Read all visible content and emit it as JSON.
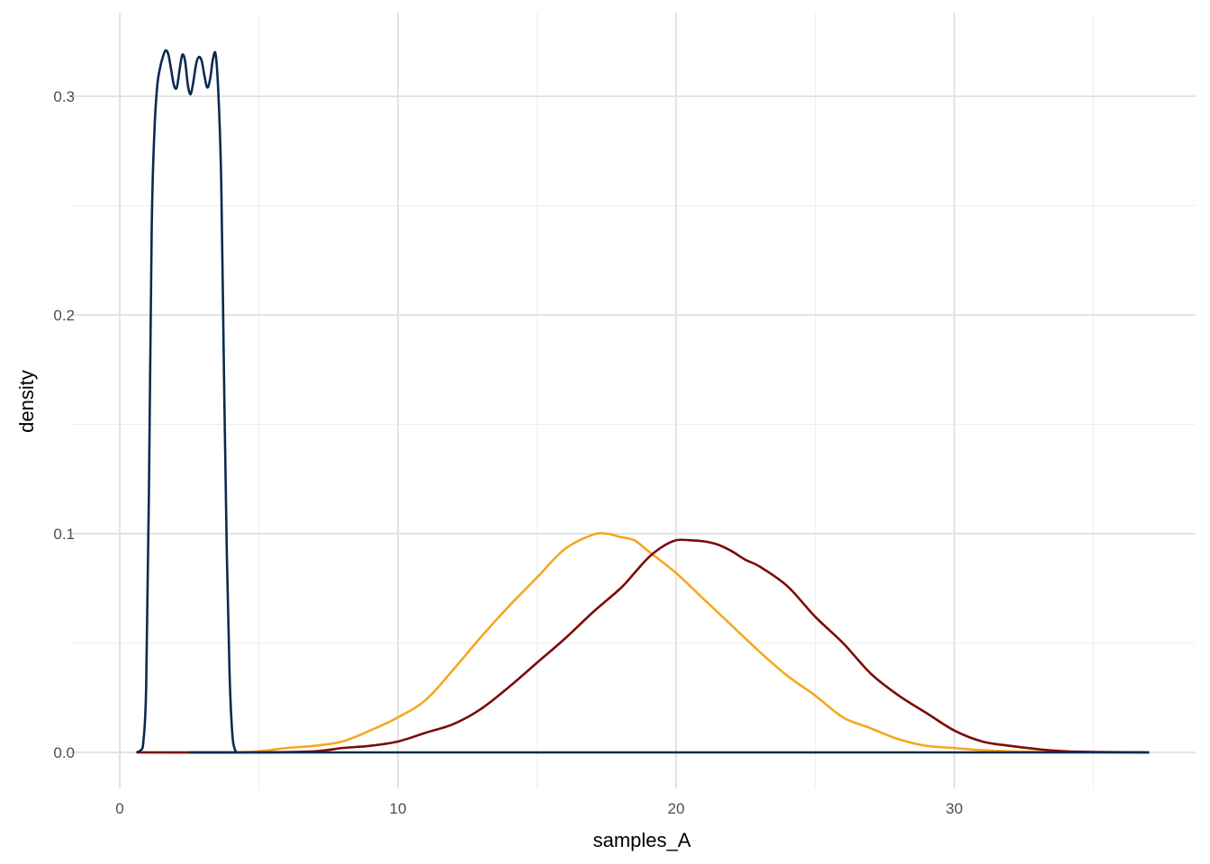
{
  "chart_data": {
    "type": "line",
    "title": "",
    "xlabel": "samples_A",
    "ylabel": "density",
    "xlim": [
      0,
      38
    ],
    "ylim": [
      0,
      0.33
    ],
    "x_ticks": [
      0,
      10,
      20,
      30
    ],
    "x_tick_labels": [
      "0",
      "10",
      "20",
      "30"
    ],
    "y_ticks": [
      0.0,
      0.1,
      0.2,
      0.3
    ],
    "y_tick_labels": [
      "0.0",
      "0.1",
      "0.2",
      "0.3"
    ],
    "grid": true,
    "legend": "none",
    "series": [
      {
        "color": "#F5A81C",
        "x": [
          0.6,
          4,
          5,
          6,
          7,
          8,
          9,
          10,
          11,
          12,
          13,
          14,
          15,
          16,
          17,
          17.5,
          18,
          18.5,
          19,
          20,
          21,
          22,
          23,
          24,
          25,
          26,
          27,
          28,
          29,
          30,
          31,
          32,
          33,
          34,
          35,
          37
        ],
        "y": [
          0,
          0,
          0.0005,
          0.002,
          0.003,
          0.005,
          0.01,
          0.016,
          0.024,
          0.038,
          0.053,
          0.067,
          0.08,
          0.093,
          0.0995,
          0.1,
          0.0985,
          0.097,
          0.092,
          0.082,
          0.07,
          0.058,
          0.046,
          0.035,
          0.026,
          0.016,
          0.011,
          0.006,
          0.003,
          0.002,
          0.001,
          0.0005,
          0.0003,
          0.0002,
          0.0001,
          0
        ]
      },
      {
        "color": "#7A0A0A",
        "x": [
          0.6,
          5,
          7,
          8,
          9,
          10,
          11,
          12,
          13,
          14,
          15,
          16,
          17,
          18,
          18.5,
          19,
          19.5,
          20,
          20.5,
          21,
          21.5,
          22,
          22.5,
          23,
          24,
          25,
          26,
          27,
          28,
          29,
          30,
          31,
          32,
          33,
          34,
          35,
          37
        ],
        "y": [
          0,
          0,
          0.0005,
          0.002,
          0.003,
          0.005,
          0.009,
          0.013,
          0.02,
          0.03,
          0.041,
          0.052,
          0.064,
          0.075,
          0.082,
          0.089,
          0.094,
          0.097,
          0.097,
          0.0965,
          0.095,
          0.092,
          0.088,
          0.085,
          0.076,
          0.062,
          0.05,
          0.036,
          0.026,
          0.018,
          0.01,
          0.005,
          0.003,
          0.0015,
          0.0005,
          0.0002,
          0
        ]
      },
      {
        "color": "#0B2A4F",
        "x": [
          0.6,
          0.75,
          0.85,
          0.95,
          1.05,
          1.15,
          1.25,
          1.35,
          1.45,
          1.55,
          1.65,
          1.75,
          1.85,
          1.95,
          2.05,
          2.15,
          2.25,
          2.35,
          2.45,
          2.55,
          2.65,
          2.75,
          2.85,
          2.95,
          3.05,
          3.15,
          3.25,
          3.35,
          3.45,
          3.55,
          3.65,
          3.75,
          3.85,
          3.95,
          4.05,
          4.15,
          4.25,
          4.35,
          4.45,
          4.55,
          4.65,
          5,
          37
        ],
        "y": [
          0,
          0.001,
          0.005,
          0.03,
          0.12,
          0.24,
          0.285,
          0.305,
          0.313,
          0.318,
          0.321,
          0.319,
          0.312,
          0.305,
          0.304,
          0.312,
          0.319,
          0.316,
          0.305,
          0.301,
          0.307,
          0.315,
          0.318,
          0.316,
          0.309,
          0.304,
          0.308,
          0.317,
          0.319,
          0.3,
          0.26,
          0.17,
          0.09,
          0.035,
          0.008,
          0.001,
          0,
          0,
          0,
          0,
          0,
          0,
          0
        ]
      }
    ]
  }
}
